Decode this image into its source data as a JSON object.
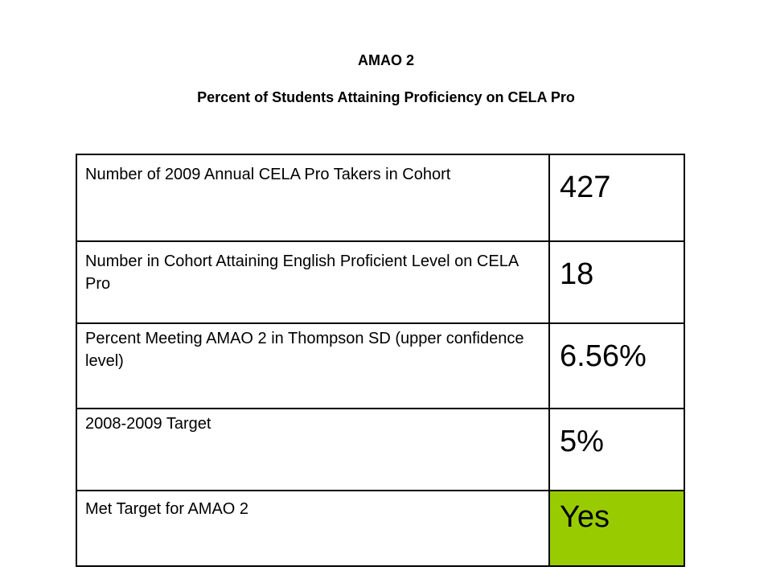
{
  "header": {
    "title": "AMAO 2",
    "subtitle": "Percent of Students Attaining Proficiency on CELA Pro"
  },
  "table": {
    "rows": [
      {
        "label": "Number of 2009 Annual CELA Pro Takers in Cohort",
        "value": "427"
      },
      {
        "label": "Number in Cohort Attaining English Proficient Level on CELA Pro",
        "value": "18"
      },
      {
        "label": "Percent Meeting AMAO 2 in Thompson SD (upper confidence level)",
        "value": "6.56%"
      },
      {
        "label": "2008-2009 Target",
        "value": "5%"
      },
      {
        "label": "Met Target for AMAO 2",
        "value": "Yes"
      }
    ],
    "highlight_color": "#99cc00"
  }
}
